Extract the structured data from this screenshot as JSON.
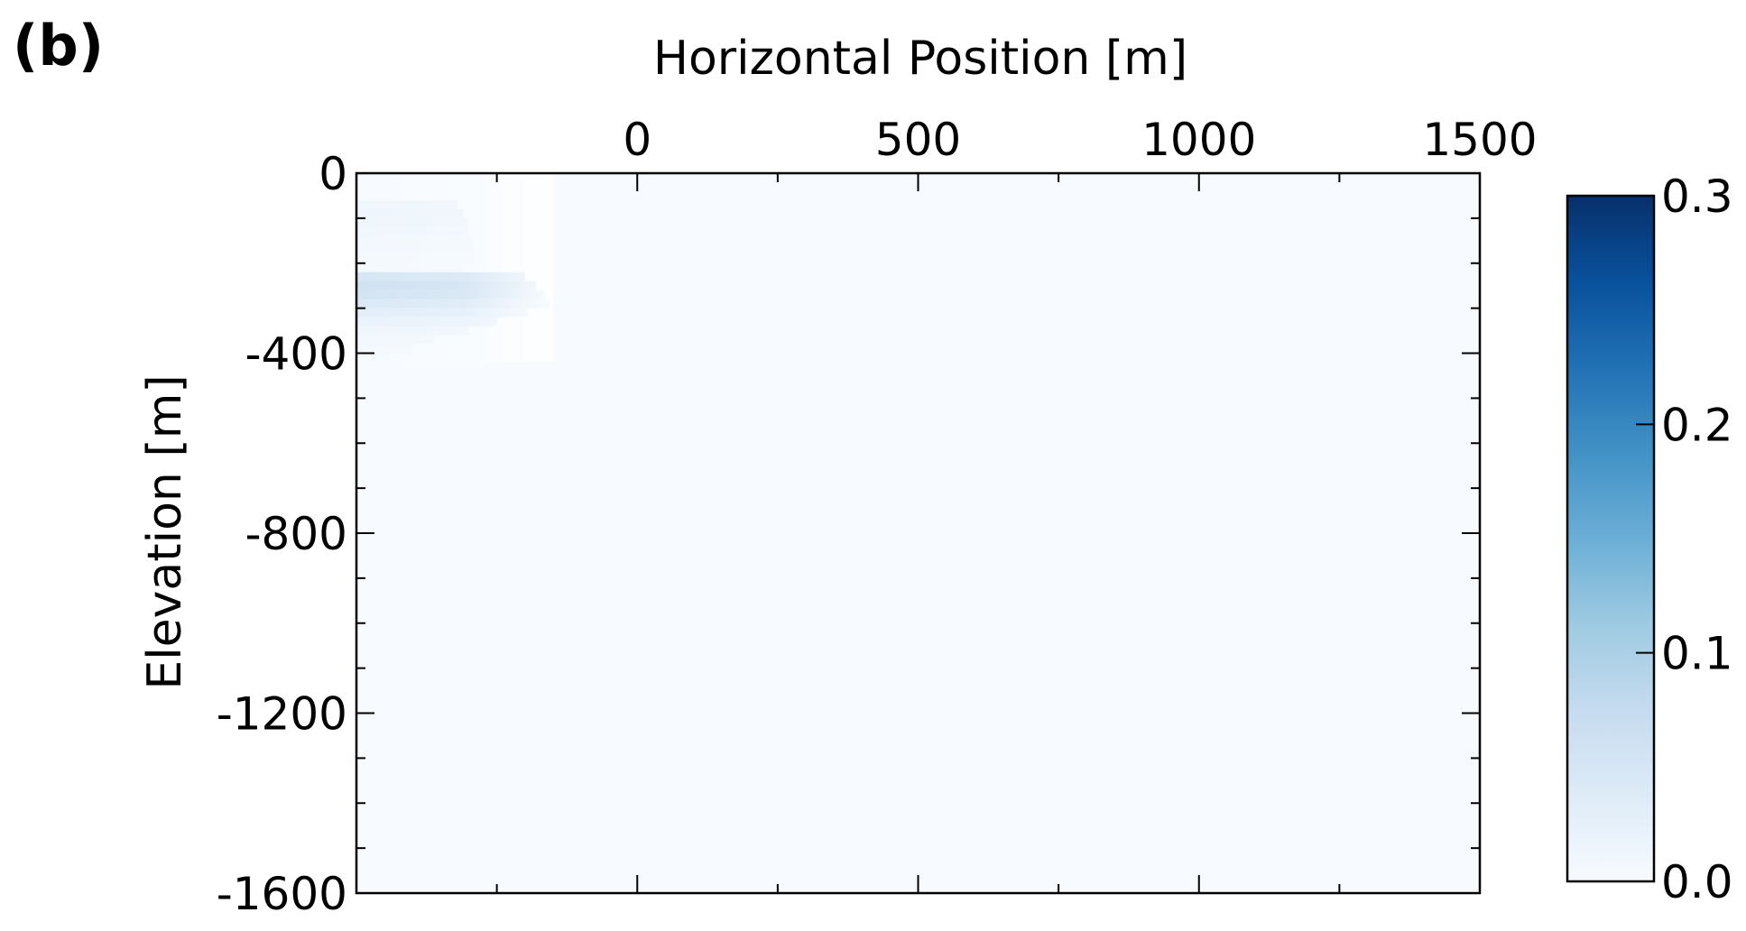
{
  "panel_label": "(b)",
  "chart_data": {
    "type": "heatmap",
    "title": "",
    "xlabel": "Horizontal Position [m]",
    "ylabel": "Elevation [m]",
    "x_ticks": [
      0,
      500,
      1000,
      1500
    ],
    "x_tick_labels": [
      "0",
      "500",
      "1000",
      "1500"
    ],
    "y_ticks": [
      0,
      -400,
      -800,
      -1200,
      -1600
    ],
    "y_tick_labels": [
      "0",
      "-400",
      "-800",
      "-1200",
      "-1600"
    ],
    "xlim": [
      -500,
      1500
    ],
    "ylim": [
      -1600,
      0
    ],
    "x_axis_position": "top",
    "colorbar": {
      "range": [
        0.0,
        0.3
      ],
      "ticks": [
        0.0,
        0.1,
        0.2,
        0.3
      ],
      "tick_labels": [
        "0.0",
        "0.1",
        "0.2",
        "0.3"
      ],
      "colormap": "Blues",
      "colors": [
        "#f7fbff",
        "#deebf7",
        "#c6dbef",
        "#9ecae1",
        "#6baed6",
        "#4292c6",
        "#2171b5",
        "#08519c",
        "#08306b"
      ]
    },
    "background_value": 0.0,
    "cell_height": 20,
    "cells": [
      {
        "y": -60,
        "x_min": -500,
        "x_max": -320,
        "value": 0.012
      },
      {
        "y": -80,
        "x_min": -500,
        "x_max": -310,
        "value": 0.014
      },
      {
        "y": -100,
        "x_min": -500,
        "x_max": -300,
        "value": 0.012
      },
      {
        "y": -120,
        "x_min": -500,
        "x_max": -300,
        "value": 0.01
      },
      {
        "y": -140,
        "x_min": -500,
        "x_max": -295,
        "value": 0.008
      },
      {
        "y": -160,
        "x_min": -500,
        "x_max": -290,
        "value": 0.006
      },
      {
        "y": -180,
        "x_min": -500,
        "x_max": -290,
        "value": 0.004
      },
      {
        "y": -200,
        "x_min": -500,
        "x_max": -310,
        "value": 0.004
      },
      {
        "y": -220,
        "x_min": -500,
        "x_max": -200,
        "value": 0.05
      },
      {
        "y": -240,
        "x_min": -500,
        "x_max": -180,
        "value": 0.06
      },
      {
        "y": -260,
        "x_min": -500,
        "x_max": -165,
        "value": 0.055
      },
      {
        "y": -280,
        "x_min": -500,
        "x_max": -155,
        "value": 0.042
      },
      {
        "y": -300,
        "x_min": -500,
        "x_max": -195,
        "value": 0.03
      },
      {
        "y": -320,
        "x_min": -500,
        "x_max": -250,
        "value": 0.02
      },
      {
        "y": -340,
        "x_min": -500,
        "x_max": -300,
        "value": 0.012
      },
      {
        "y": -360,
        "x_min": -500,
        "x_max": -360,
        "value": 0.008
      },
      {
        "y": -380,
        "x_min": -500,
        "x_max": -400,
        "value": 0.005
      },
      {
        "y": -400,
        "x_min": -500,
        "x_max": -440,
        "value": 0.003
      }
    ]
  }
}
